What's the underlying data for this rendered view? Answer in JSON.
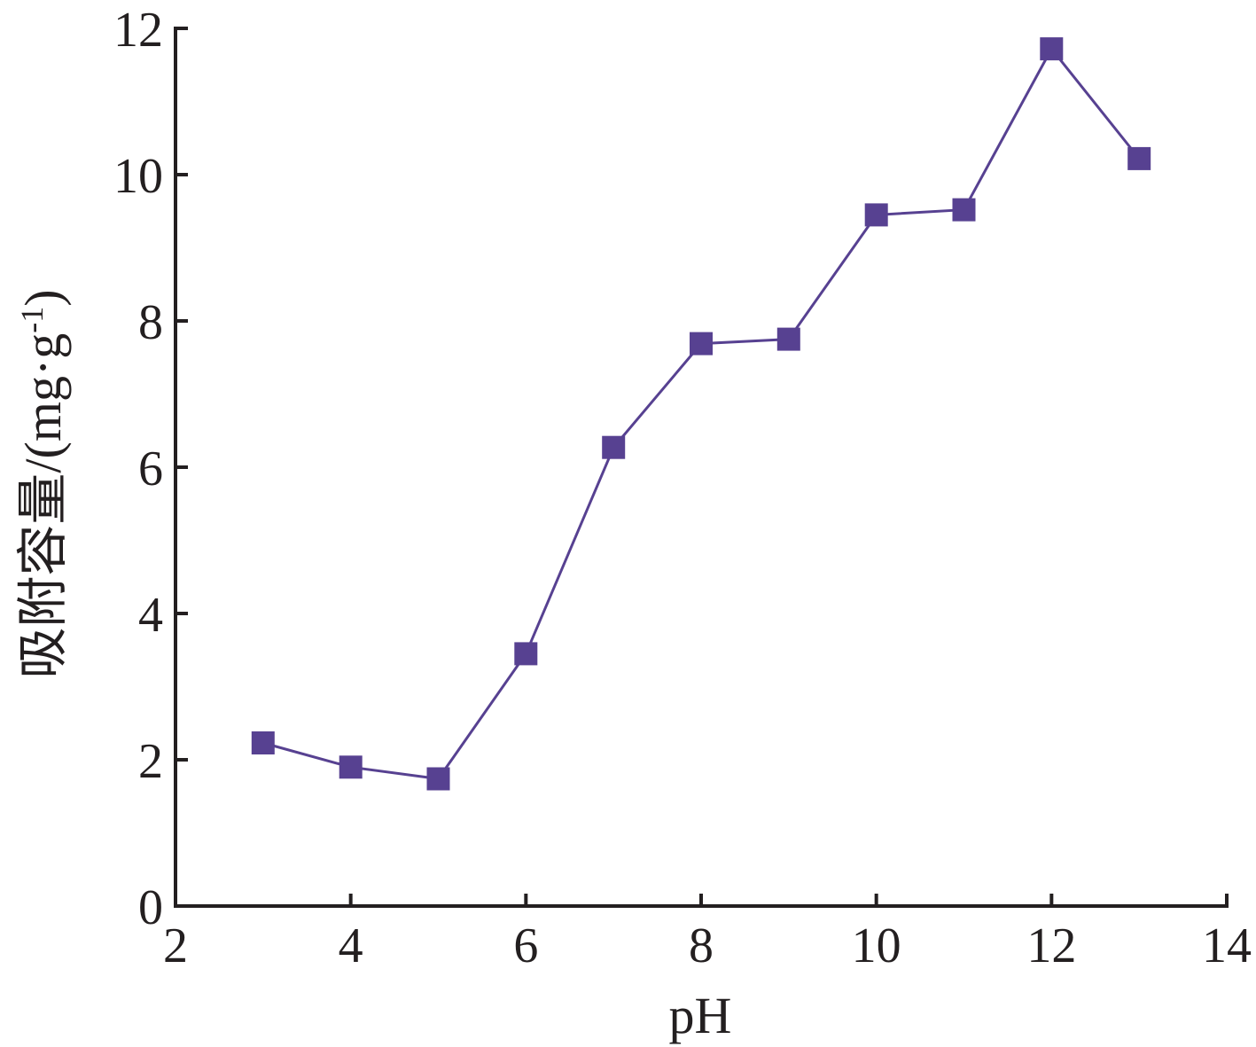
{
  "chart_data": {
    "type": "line",
    "xlabel": "pH",
    "ylabel": "吸附容量/(mg·g",
    "ylabel_sup": "-1",
    "ylabel_close": ")",
    "xlim": [
      2,
      14
    ],
    "ylim": [
      0,
      12
    ],
    "xticks": [
      2,
      4,
      6,
      8,
      10,
      12,
      14
    ],
    "yticks": [
      0,
      2,
      4,
      6,
      8,
      10,
      12
    ],
    "grid": false,
    "legend": "none",
    "series": [
      {
        "color": "#574191",
        "marker": "square",
        "x": [
          3,
          4,
          5,
          6,
          7,
          8,
          9,
          10,
          11,
          12,
          13
        ],
        "y": [
          2.23,
          1.9,
          1.74,
          3.45,
          6.27,
          7.69,
          7.75,
          9.45,
          9.52,
          11.72,
          10.22
        ]
      }
    ]
  }
}
